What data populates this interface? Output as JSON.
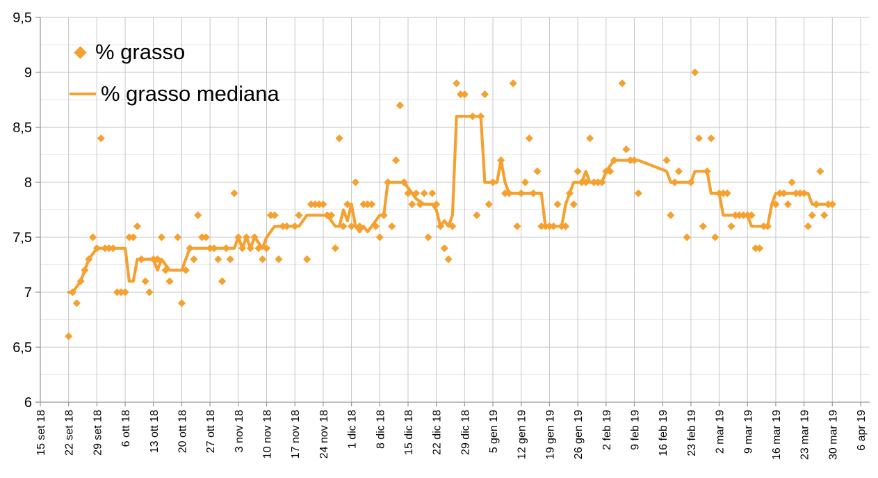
{
  "chart_data": {
    "type": "scatter",
    "title": "",
    "legend": [
      {
        "label": "% grasso",
        "marker": "diamond"
      },
      {
        "label": "% grasso mediana",
        "marker": "line"
      }
    ],
    "colors": {
      "series": "#F5A02F",
      "grid_major": "#c6c6c6",
      "grid_minor": "#e4e4e4",
      "axis": "#9a9a9a",
      "text": "#000000"
    },
    "y_axis": {
      "min": 6,
      "max": 9.5,
      "major_step": 0.5,
      "minor_step": 0.25,
      "tick_values": [
        9.5,
        9,
        8.5,
        8,
        7.5,
        7,
        6.5,
        6
      ],
      "tick_labels": [
        "9,5",
        "9",
        "8,5",
        "8",
        "7,5",
        "7",
        "6,5",
        "6"
      ]
    },
    "x_axis": {
      "start_date": "2018-09-15",
      "tick_interval_days": 7,
      "tick_labels": [
        "15 set 18",
        "22 set 18",
        "29 set 18",
        "6 ott 18",
        "13 ott 18",
        "20 ott 18",
        "27 ott 18",
        "3 nov 18",
        "10 nov 18",
        "17 nov 18",
        "24 nov 18",
        "1 dic 18",
        "8 dic 18",
        "15 dic 18",
        "22 dic 18",
        "29 dic 18",
        "5 gen 19",
        "12 gen 19",
        "19 gen 19",
        "26 gen 19",
        "2 feb 19",
        "9 feb 19",
        "16 feb 19",
        "23 feb 19",
        "2 mar 19",
        "9 mar 19",
        "16 mar 19",
        "23 mar 19",
        "30 mar 19",
        "6 apr 19"
      ]
    },
    "series": [
      {
        "name": "% grasso",
        "type": "scatter",
        "points": [
          [
            "2018-09-22",
            6.6
          ],
          [
            "2018-09-23",
            7.0
          ],
          [
            "2018-09-24",
            6.9
          ],
          [
            "2018-09-25",
            7.1
          ],
          [
            "2018-09-26",
            7.2
          ],
          [
            "2018-09-27",
            7.3
          ],
          [
            "2018-09-28",
            7.5
          ],
          [
            "2018-09-29",
            7.4
          ],
          [
            "2018-09-30",
            8.4
          ],
          [
            "2018-10-01",
            7.4
          ],
          [
            "2018-10-02",
            7.4
          ],
          [
            "2018-10-03",
            7.4
          ],
          [
            "2018-10-04",
            7.0
          ],
          [
            "2018-10-05",
            7.0
          ],
          [
            "2018-10-06",
            7.0
          ],
          [
            "2018-10-07",
            7.5
          ],
          [
            "2018-10-08",
            7.5
          ],
          [
            "2018-10-09",
            7.6
          ],
          [
            "2018-10-10",
            7.3
          ],
          [
            "2018-10-11",
            7.1
          ],
          [
            "2018-10-12",
            7.0
          ],
          [
            "2018-10-13",
            7.3
          ],
          [
            "2018-10-14",
            7.3
          ],
          [
            "2018-10-15",
            7.5
          ],
          [
            "2018-10-16",
            7.2
          ],
          [
            "2018-10-17",
            7.1
          ],
          [
            "2018-10-19",
            7.5
          ],
          [
            "2018-10-20",
            6.9
          ],
          [
            "2018-10-21",
            7.2
          ],
          [
            "2018-10-22",
            7.4
          ],
          [
            "2018-10-23",
            7.3
          ],
          [
            "2018-10-24",
            7.7
          ],
          [
            "2018-10-25",
            7.5
          ],
          [
            "2018-10-26",
            7.5
          ],
          [
            "2018-10-27",
            7.4
          ],
          [
            "2018-10-28",
            7.4
          ],
          [
            "2018-10-29",
            7.3
          ],
          [
            "2018-10-30",
            7.1
          ],
          [
            "2018-10-31",
            7.4
          ],
          [
            "2018-11-01",
            7.3
          ],
          [
            "2018-11-02",
            7.9
          ],
          [
            "2018-11-03",
            7.5
          ],
          [
            "2018-11-04",
            7.4
          ],
          [
            "2018-11-05",
            7.5
          ],
          [
            "2018-11-06",
            7.4
          ],
          [
            "2018-11-07",
            7.5
          ],
          [
            "2018-11-08",
            7.4
          ],
          [
            "2018-11-09",
            7.3
          ],
          [
            "2018-11-10",
            7.4
          ],
          [
            "2018-11-11",
            7.7
          ],
          [
            "2018-11-12",
            7.7
          ],
          [
            "2018-11-13",
            7.3
          ],
          [
            "2018-11-14",
            7.6
          ],
          [
            "2018-11-15",
            7.6
          ],
          [
            "2018-11-17",
            7.6
          ],
          [
            "2018-11-18",
            7.7
          ],
          [
            "2018-11-20",
            7.3
          ],
          [
            "2018-11-21",
            7.8
          ],
          [
            "2018-11-22",
            7.8
          ],
          [
            "2018-11-23",
            7.8
          ],
          [
            "2018-11-24",
            7.8
          ],
          [
            "2018-11-25",
            7.7
          ],
          [
            "2018-11-26",
            7.7
          ],
          [
            "2018-11-27",
            7.4
          ],
          [
            "2018-11-28",
            8.4
          ],
          [
            "2018-11-29",
            7.6
          ],
          [
            "2018-11-30",
            7.8
          ],
          [
            "2018-12-01",
            7.6
          ],
          [
            "2018-12-02",
            8.0
          ],
          [
            "2018-12-03",
            7.6
          ],
          [
            "2018-12-04",
            7.8
          ],
          [
            "2018-12-05",
            7.8
          ],
          [
            "2018-12-06",
            7.8
          ],
          [
            "2018-12-07",
            7.6
          ],
          [
            "2018-12-08",
            7.5
          ],
          [
            "2018-12-09",
            7.7
          ],
          [
            "2018-12-10",
            8.0
          ],
          [
            "2018-12-11",
            7.6
          ],
          [
            "2018-12-12",
            8.2
          ],
          [
            "2018-12-13",
            8.7
          ],
          [
            "2018-12-14",
            8.0
          ],
          [
            "2018-12-15",
            7.9
          ],
          [
            "2018-12-16",
            7.8
          ],
          [
            "2018-12-17",
            7.9
          ],
          [
            "2018-12-18",
            7.8
          ],
          [
            "2018-12-19",
            7.9
          ],
          [
            "2018-12-20",
            7.5
          ],
          [
            "2018-12-21",
            7.9
          ],
          [
            "2018-12-22",
            7.8
          ],
          [
            "2018-12-23",
            7.6
          ],
          [
            "2018-12-24",
            7.4
          ],
          [
            "2018-12-25",
            7.3
          ],
          [
            "2018-12-26",
            7.6
          ],
          [
            "2018-12-27",
            8.9
          ],
          [
            "2018-12-28",
            8.8
          ],
          [
            "2018-12-29",
            8.8
          ],
          [
            "2018-12-31",
            8.6
          ],
          [
            "2019-01-01",
            7.7
          ],
          [
            "2019-01-02",
            8.6
          ],
          [
            "2019-01-03",
            8.8
          ],
          [
            "2019-01-04",
            7.8
          ],
          [
            "2019-01-05",
            8.0
          ],
          [
            "2019-01-07",
            8.2
          ],
          [
            "2019-01-08",
            7.9
          ],
          [
            "2019-01-09",
            7.9
          ],
          [
            "2019-01-10",
            8.9
          ],
          [
            "2019-01-11",
            7.6
          ],
          [
            "2019-01-12",
            7.9
          ],
          [
            "2019-01-13",
            8.0
          ],
          [
            "2019-01-14",
            8.4
          ],
          [
            "2019-01-15",
            7.9
          ],
          [
            "2019-01-16",
            8.1
          ],
          [
            "2019-01-17",
            7.6
          ],
          [
            "2019-01-18",
            7.6
          ],
          [
            "2019-01-19",
            7.6
          ],
          [
            "2019-01-20",
            7.6
          ],
          [
            "2019-01-21",
            7.8
          ],
          [
            "2019-01-22",
            7.6
          ],
          [
            "2019-01-23",
            7.6
          ],
          [
            "2019-01-24",
            7.9
          ],
          [
            "2019-01-25",
            7.8
          ],
          [
            "2019-01-26",
            8.1
          ],
          [
            "2019-01-27",
            8.0
          ],
          [
            "2019-01-28",
            8.0
          ],
          [
            "2019-01-29",
            8.4
          ],
          [
            "2019-01-30",
            8.0
          ],
          [
            "2019-01-31",
            8.0
          ],
          [
            "2019-02-01",
            8.0
          ],
          [
            "2019-02-02",
            8.1
          ],
          [
            "2019-02-03",
            8.1
          ],
          [
            "2019-02-04",
            8.2
          ],
          [
            "2019-02-06",
            8.9
          ],
          [
            "2019-02-07",
            8.3
          ],
          [
            "2019-02-08",
            8.2
          ],
          [
            "2019-02-09",
            8.2
          ],
          [
            "2019-02-10",
            7.9
          ],
          [
            "2019-02-17",
            8.2
          ],
          [
            "2019-02-18",
            7.7
          ],
          [
            "2019-02-19",
            8.0
          ],
          [
            "2019-02-20",
            8.1
          ],
          [
            "2019-02-22",
            7.5
          ],
          [
            "2019-02-23",
            8.0
          ],
          [
            "2019-02-24",
            9.0
          ],
          [
            "2019-02-25",
            8.4
          ],
          [
            "2019-02-26",
            7.6
          ],
          [
            "2019-02-27",
            8.1
          ],
          [
            "2019-02-28",
            8.4
          ],
          [
            "2019-03-01",
            7.5
          ],
          [
            "2019-03-02",
            7.9
          ],
          [
            "2019-03-03",
            7.9
          ],
          [
            "2019-03-04",
            7.9
          ],
          [
            "2019-03-05",
            7.6
          ],
          [
            "2019-03-06",
            7.7
          ],
          [
            "2019-03-07",
            7.7
          ],
          [
            "2019-03-08",
            7.7
          ],
          [
            "2019-03-09",
            7.7
          ],
          [
            "2019-03-10",
            7.7
          ],
          [
            "2019-03-11",
            7.4
          ],
          [
            "2019-03-12",
            7.4
          ],
          [
            "2019-03-13",
            7.6
          ],
          [
            "2019-03-14",
            7.6
          ],
          [
            "2019-03-16",
            7.8
          ],
          [
            "2019-03-17",
            7.9
          ],
          [
            "2019-03-18",
            7.9
          ],
          [
            "2019-03-19",
            7.8
          ],
          [
            "2019-03-20",
            8.0
          ],
          [
            "2019-03-21",
            7.9
          ],
          [
            "2019-03-22",
            7.9
          ],
          [
            "2019-03-23",
            7.9
          ],
          [
            "2019-03-24",
            7.6
          ],
          [
            "2019-03-25",
            7.7
          ],
          [
            "2019-03-26",
            7.8
          ],
          [
            "2019-03-27",
            8.1
          ],
          [
            "2019-03-28",
            7.7
          ],
          [
            "2019-03-29",
            7.8
          ],
          [
            "2019-03-30",
            7.8
          ]
        ]
      },
      {
        "name": "% grasso mediana",
        "type": "line",
        "points": [
          [
            "2018-09-22",
            7.0
          ],
          [
            "2018-09-23",
            7.0
          ],
          [
            "2018-09-25",
            7.1
          ],
          [
            "2018-09-26",
            7.2
          ],
          [
            "2018-09-27",
            7.3
          ],
          [
            "2018-09-29",
            7.4
          ],
          [
            "2018-10-06",
            7.4
          ],
          [
            "2018-10-07",
            7.1
          ],
          [
            "2018-10-08",
            7.1
          ],
          [
            "2018-10-09",
            7.3
          ],
          [
            "2018-10-13",
            7.3
          ],
          [
            "2018-10-14",
            7.2
          ],
          [
            "2018-10-15",
            7.3
          ],
          [
            "2018-10-16",
            7.25
          ],
          [
            "2018-10-17",
            7.2
          ],
          [
            "2018-10-20",
            7.2
          ],
          [
            "2018-10-22",
            7.4
          ],
          [
            "2018-11-02",
            7.4
          ],
          [
            "2018-11-03",
            7.5
          ],
          [
            "2018-11-04",
            7.4
          ],
          [
            "2018-11-05",
            7.5
          ],
          [
            "2018-11-06",
            7.4
          ],
          [
            "2018-11-07",
            7.5
          ],
          [
            "2018-11-09",
            7.4
          ],
          [
            "2018-11-10",
            7.5
          ],
          [
            "2018-11-12",
            7.6
          ],
          [
            "2018-11-18",
            7.6
          ],
          [
            "2018-11-20",
            7.7
          ],
          [
            "2018-11-25",
            7.7
          ],
          [
            "2018-11-26",
            7.65
          ],
          [
            "2018-11-27",
            7.6
          ],
          [
            "2018-11-28",
            7.6
          ],
          [
            "2018-11-29",
            7.75
          ],
          [
            "2018-11-30",
            7.65
          ],
          [
            "2018-12-01",
            7.8
          ],
          [
            "2018-12-02",
            7.6
          ],
          [
            "2018-12-03",
            7.55
          ],
          [
            "2018-12-04",
            7.6
          ],
          [
            "2018-12-05",
            7.55
          ],
          [
            "2018-12-06",
            7.6
          ],
          [
            "2018-12-08",
            7.7
          ],
          [
            "2018-12-09",
            7.7
          ],
          [
            "2018-12-10",
            8.0
          ],
          [
            "2018-12-14",
            8.0
          ],
          [
            "2018-12-15",
            7.95
          ],
          [
            "2018-12-16",
            7.9
          ],
          [
            "2018-12-17",
            7.85
          ],
          [
            "2018-12-19",
            7.8
          ],
          [
            "2018-12-21",
            7.8
          ],
          [
            "2018-12-22",
            7.75
          ],
          [
            "2018-12-23",
            7.6
          ],
          [
            "2018-12-24",
            7.65
          ],
          [
            "2018-12-25",
            7.6
          ],
          [
            "2018-12-26",
            7.7
          ],
          [
            "2018-12-27",
            8.6
          ],
          [
            "2019-01-02",
            8.6
          ],
          [
            "2019-01-03",
            8.0
          ],
          [
            "2019-01-06",
            8.0
          ],
          [
            "2019-01-07",
            8.2
          ],
          [
            "2019-01-08",
            8.0
          ],
          [
            "2019-01-09",
            7.9
          ],
          [
            "2019-01-17",
            7.9
          ],
          [
            "2019-01-18",
            7.6
          ],
          [
            "2019-01-22",
            7.6
          ],
          [
            "2019-01-23",
            7.8
          ],
          [
            "2019-01-24",
            7.9
          ],
          [
            "2019-01-25",
            8.0
          ],
          [
            "2019-01-27",
            8.0
          ],
          [
            "2019-01-28",
            8.1
          ],
          [
            "2019-01-29",
            8.0
          ],
          [
            "2019-02-01",
            8.0
          ],
          [
            "2019-02-02",
            8.1
          ],
          [
            "2019-02-04",
            8.2
          ],
          [
            "2019-02-10",
            8.2
          ],
          [
            "2019-02-17",
            8.1
          ],
          [
            "2019-02-18",
            8.0
          ],
          [
            "2019-02-23",
            8.0
          ],
          [
            "2019-02-24",
            8.1
          ],
          [
            "2019-02-27",
            8.1
          ],
          [
            "2019-02-28",
            7.9
          ],
          [
            "2019-03-02",
            7.9
          ],
          [
            "2019-03-03",
            7.7
          ],
          [
            "2019-03-09",
            7.7
          ],
          [
            "2019-03-10",
            7.6
          ],
          [
            "2019-03-14",
            7.6
          ],
          [
            "2019-03-15",
            7.8
          ],
          [
            "2019-03-16",
            7.9
          ],
          [
            "2019-03-24",
            7.9
          ],
          [
            "2019-03-25",
            7.8
          ],
          [
            "2019-03-30",
            7.8
          ]
        ]
      }
    ]
  }
}
